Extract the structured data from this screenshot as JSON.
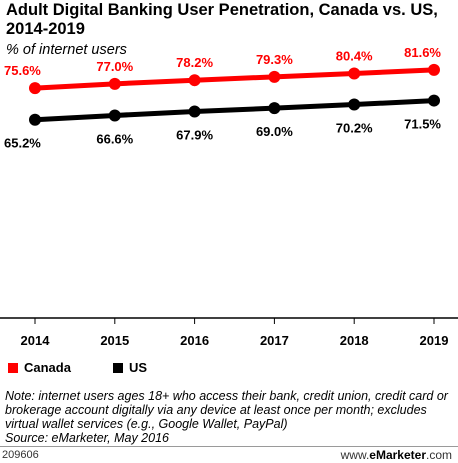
{
  "chart_data": {
    "type": "line",
    "title": "Adult Digital Banking User Penetration, Canada vs. US, 2014-2019",
    "subtitle": "% of internet users",
    "x": [
      "2014",
      "2015",
      "2016",
      "2017",
      "2018",
      "2019"
    ],
    "series": [
      {
        "name": "Canada",
        "color": "#ff0000",
        "values": [
          75.6,
          77.0,
          78.2,
          79.3,
          80.4,
          81.6
        ],
        "labels": [
          "75.6%",
          "77.0%",
          "78.2%",
          "79.3%",
          "80.4%",
          "81.6%"
        ]
      },
      {
        "name": "US",
        "color": "#000000",
        "values": [
          65.2,
          66.6,
          67.9,
          69.0,
          70.2,
          71.5
        ],
        "labels": [
          "65.2%",
          "66.6%",
          "67.9%",
          "69.0%",
          "70.2%",
          "71.5%"
        ]
      }
    ],
    "ylim": [
      0,
      100
    ],
    "grid": false,
    "legend_position": "bottom-left"
  },
  "note": "Note: internet users ages 18+ who access their bank, credit union, credit card or brokerage account digitally via any device at least once per month; excludes virtual wallet services (e.g., Google Wallet, PayPal)",
  "source": "Source: eMarketer, May 2016",
  "chart_id": "209606",
  "brand": {
    "prefix": "www.",
    "name": "eMarketer",
    "suffix": ".com"
  },
  "colors": {
    "canada": "#ff0000",
    "us": "#000000",
    "axis": "#000000"
  }
}
